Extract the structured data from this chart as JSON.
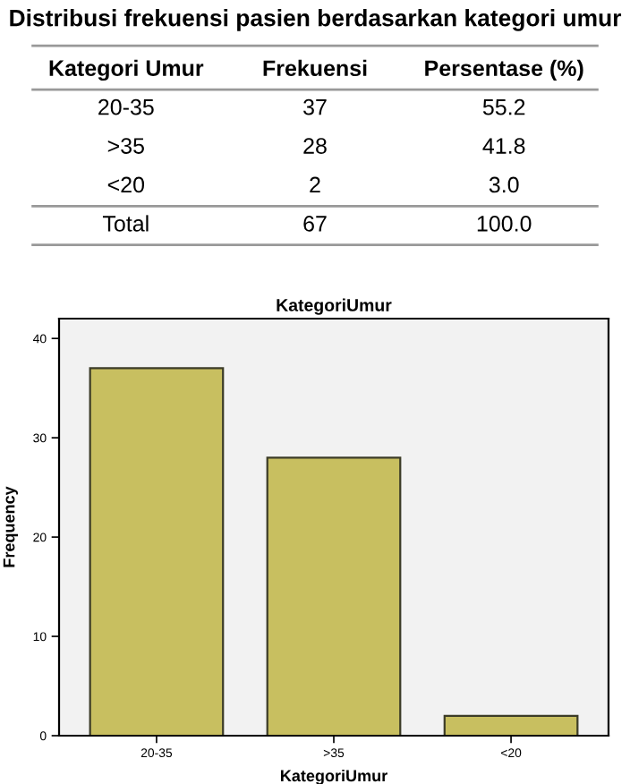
{
  "chart_data": [
    {
      "type": "other",
      "title": "Distribusi frekuensi pasien berdasarkan kategori umur",
      "categories": [
        "Kategori Umur",
        "Frekuensi",
        "Persentase (%)"
      ],
      "annotations": [
        "20-35",
        "37",
        "55.2",
        ">35",
        "28",
        "41.8",
        "<20",
        "2",
        "3.0",
        "Total",
        "67",
        "100.0"
      ]
    },
    {
      "type": "bar",
      "title": "KategoriUmur",
      "xlabel": "KategoriUmur",
      "ylabel": "Frequency",
      "categories": [
        "20-35",
        ">35",
        "<20"
      ],
      "values": [
        37,
        28,
        2
      ],
      "color": "#c8bf60",
      "ylim": [
        0,
        42
      ],
      "yticks": [
        0,
        10,
        20,
        30,
        40
      ],
      "grid": false
    }
  ]
}
